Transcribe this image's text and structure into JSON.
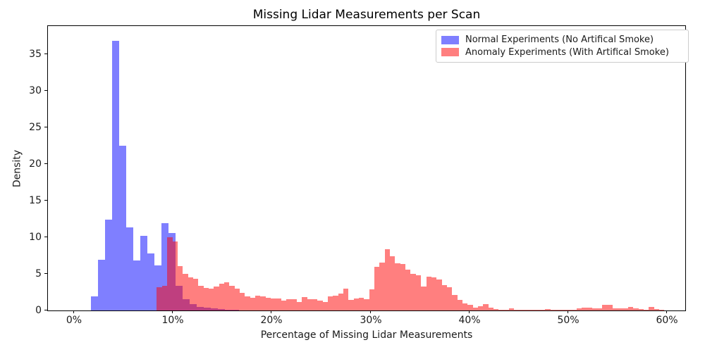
{
  "figure": {
    "title": "Missing Lidar Measurements per Scan",
    "xlabel": "Percentage of Missing Lidar Measurements",
    "ylabel": "Density",
    "background_color": "#ffffff",
    "spine_color": "#000000"
  },
  "legend": {
    "position": "upper right",
    "entries": [
      {
        "label": "Normal Experiments (No Artifical Smoke)",
        "swatch_color": "#7f7fff"
      },
      {
        "label": "Anomaly Experiments (With Artifical Smoke)",
        "swatch_color": "#ff7f7f"
      }
    ]
  },
  "chart_data": {
    "type": "bar",
    "subtype": "overlapping-density-histogram",
    "title": "Missing Lidar Measurements per Scan",
    "xlabel": "Percentage of Missing Lidar Measurements",
    "ylabel": "Density",
    "grid": false,
    "legend_position": "upper right",
    "xlim": [
      -2.64,
      61.84
    ],
    "ylim": [
      0,
      38.85
    ],
    "x_ticks": [
      {
        "value": 0,
        "label": "0%"
      },
      {
        "value": 10,
        "label": "10%"
      },
      {
        "value": 20,
        "label": "20%"
      },
      {
        "value": 30,
        "label": "30%"
      },
      {
        "value": 40,
        "label": "40%"
      },
      {
        "value": 50,
        "label": "50%"
      },
      {
        "value": 60,
        "label": "60%"
      }
    ],
    "y_ticks": [
      {
        "value": 0,
        "label": "0"
      },
      {
        "value": 5,
        "label": "5"
      },
      {
        "value": 10,
        "label": "10"
      },
      {
        "value": 15,
        "label": "15"
      },
      {
        "value": 20,
        "label": "20"
      },
      {
        "value": 25,
        "label": "25"
      },
      {
        "value": 30,
        "label": "30"
      },
      {
        "value": 35,
        "label": "35"
      }
    ],
    "series": [
      {
        "name": "Normal Experiments (No Artifical Smoke)",
        "color": "rgba(0,0,255,0.5)",
        "bin_start_pct": 1.71,
        "bin_width_pct": 0.713,
        "densities": [
          1.9,
          6.9,
          12.4,
          36.8,
          22.5,
          11.3,
          6.8,
          10.2,
          7.8,
          6.2,
          11.9,
          10.6,
          3.4,
          1.5,
          0.9,
          0.5,
          0.35,
          0.25,
          0.15,
          0.1,
          0.1
        ]
      },
      {
        "name": "Anomaly Experiments (With Artifical Smoke)",
        "color": "rgba(255,0,0,0.5)",
        "bin_start_pct": 8.38,
        "bin_width_pct": 0.524,
        "densities": [
          3.2,
          3.4,
          10.0,
          9.4,
          6.1,
          5.0,
          4.5,
          4.3,
          3.4,
          3.05,
          3.0,
          3.3,
          3.65,
          3.8,
          3.4,
          3.0,
          2.4,
          1.9,
          1.7,
          2.0,
          1.9,
          1.7,
          1.65,
          1.65,
          1.35,
          1.55,
          1.5,
          1.2,
          1.85,
          1.55,
          1.5,
          1.35,
          1.2,
          1.9,
          2.05,
          2.3,
          3.0,
          1.45,
          1.6,
          1.7,
          1.5,
          2.9,
          6.0,
          6.5,
          8.35,
          7.4,
          6.45,
          6.35,
          5.6,
          5.0,
          4.8,
          3.3,
          4.6,
          4.5,
          4.2,
          3.5,
          3.2,
          2.1,
          1.4,
          1.0,
          0.75,
          0.35,
          0.6,
          0.9,
          0.35,
          0.2,
          0.05,
          0.05,
          0.25,
          0.1,
          0.05,
          0.05,
          0.05,
          0.05,
          0.05,
          0.2,
          0.1,
          0.05,
          0.05,
          0.1,
          0.1,
          0.3,
          0.4,
          0.4,
          0.3,
          0.25,
          0.75,
          0.75,
          0.25,
          0.3,
          0.3,
          0.45,
          0.3,
          0.2,
          0.1,
          0.45,
          0.15,
          0.1
        ]
      }
    ]
  },
  "layout_note": "density histogram, red series drawn over blue; overlap renders raspberry #bf4080"
}
